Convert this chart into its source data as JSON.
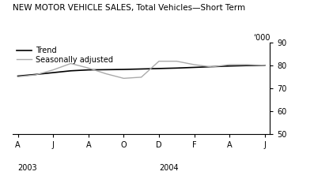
{
  "title": "NEW MOTOR VEHICLE SALES, Total Vehicles—Short Term",
  "ylabel": "‘000",
  "ylim": [
    50,
    90
  ],
  "yticks": [
    50,
    60,
    70,
    80,
    90
  ],
  "xtick_labels": [
    "A",
    "J",
    "A",
    "O",
    "D",
    "F",
    "A",
    "J"
  ],
  "trend": [
    75.5,
    76.2,
    77.0,
    77.8,
    78.2,
    78.3,
    78.4,
    78.6,
    78.8,
    79.0,
    79.3,
    79.6,
    79.9,
    80.1,
    80.2
  ],
  "seasonal": [
    75.2,
    76.0,
    78.2,
    81.0,
    79.0,
    76.5,
    74.5,
    75.0,
    82.0,
    82.0,
    80.5,
    79.5,
    80.5,
    80.5,
    80.2
  ],
  "trend_color": "#000000",
  "seasonal_color": "#aaaaaa",
  "trend_label": "Trend",
  "seasonal_label": "Seasonally adjusted",
  "bg_color": "#ffffff",
  "title_fontsize": 7.5,
  "legend_fontsize": 7,
  "tick_fontsize": 7,
  "linewidth_trend": 1.2,
  "linewidth_seasonal": 1.0
}
